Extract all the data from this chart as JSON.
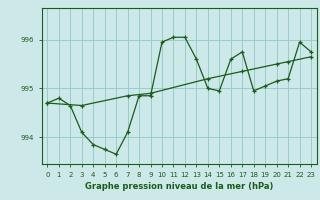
{
  "title": "Graphe pression niveau de la mer (hPa)",
  "bg_color": "#cce8e8",
  "grid_color": "#99cccc",
  "line_color": "#1a5c1a",
  "x_labels": [
    "0",
    "1",
    "2",
    "3",
    "4",
    "5",
    "6",
    "7",
    "8",
    "9",
    "10",
    "11",
    "12",
    "13",
    "14",
    "15",
    "16",
    "17",
    "18",
    "19",
    "20",
    "21",
    "22",
    "23"
  ],
  "y_ticks": [
    994,
    995,
    996
  ],
  "ylim": [
    993.45,
    996.65
  ],
  "xlim": [
    -0.5,
    23.5
  ],
  "series1_x": [
    0,
    1,
    2,
    3,
    4,
    5,
    6,
    7,
    8,
    9,
    10,
    11,
    12,
    13,
    14,
    15,
    16,
    17,
    18,
    19,
    20,
    21,
    22,
    23
  ],
  "series1_y": [
    994.7,
    994.8,
    994.65,
    994.1,
    993.85,
    993.75,
    993.65,
    994.1,
    994.85,
    994.85,
    995.95,
    996.05,
    996.05,
    995.6,
    995.0,
    994.95,
    995.6,
    995.75,
    994.95,
    995.05,
    995.15,
    995.2,
    995.95,
    995.75
  ],
  "series2_x": [
    0,
    3,
    7,
    9,
    14,
    17,
    20,
    21,
    23
  ],
  "series2_y": [
    994.7,
    994.65,
    994.85,
    994.9,
    995.2,
    995.35,
    995.5,
    995.55,
    995.65
  ]
}
